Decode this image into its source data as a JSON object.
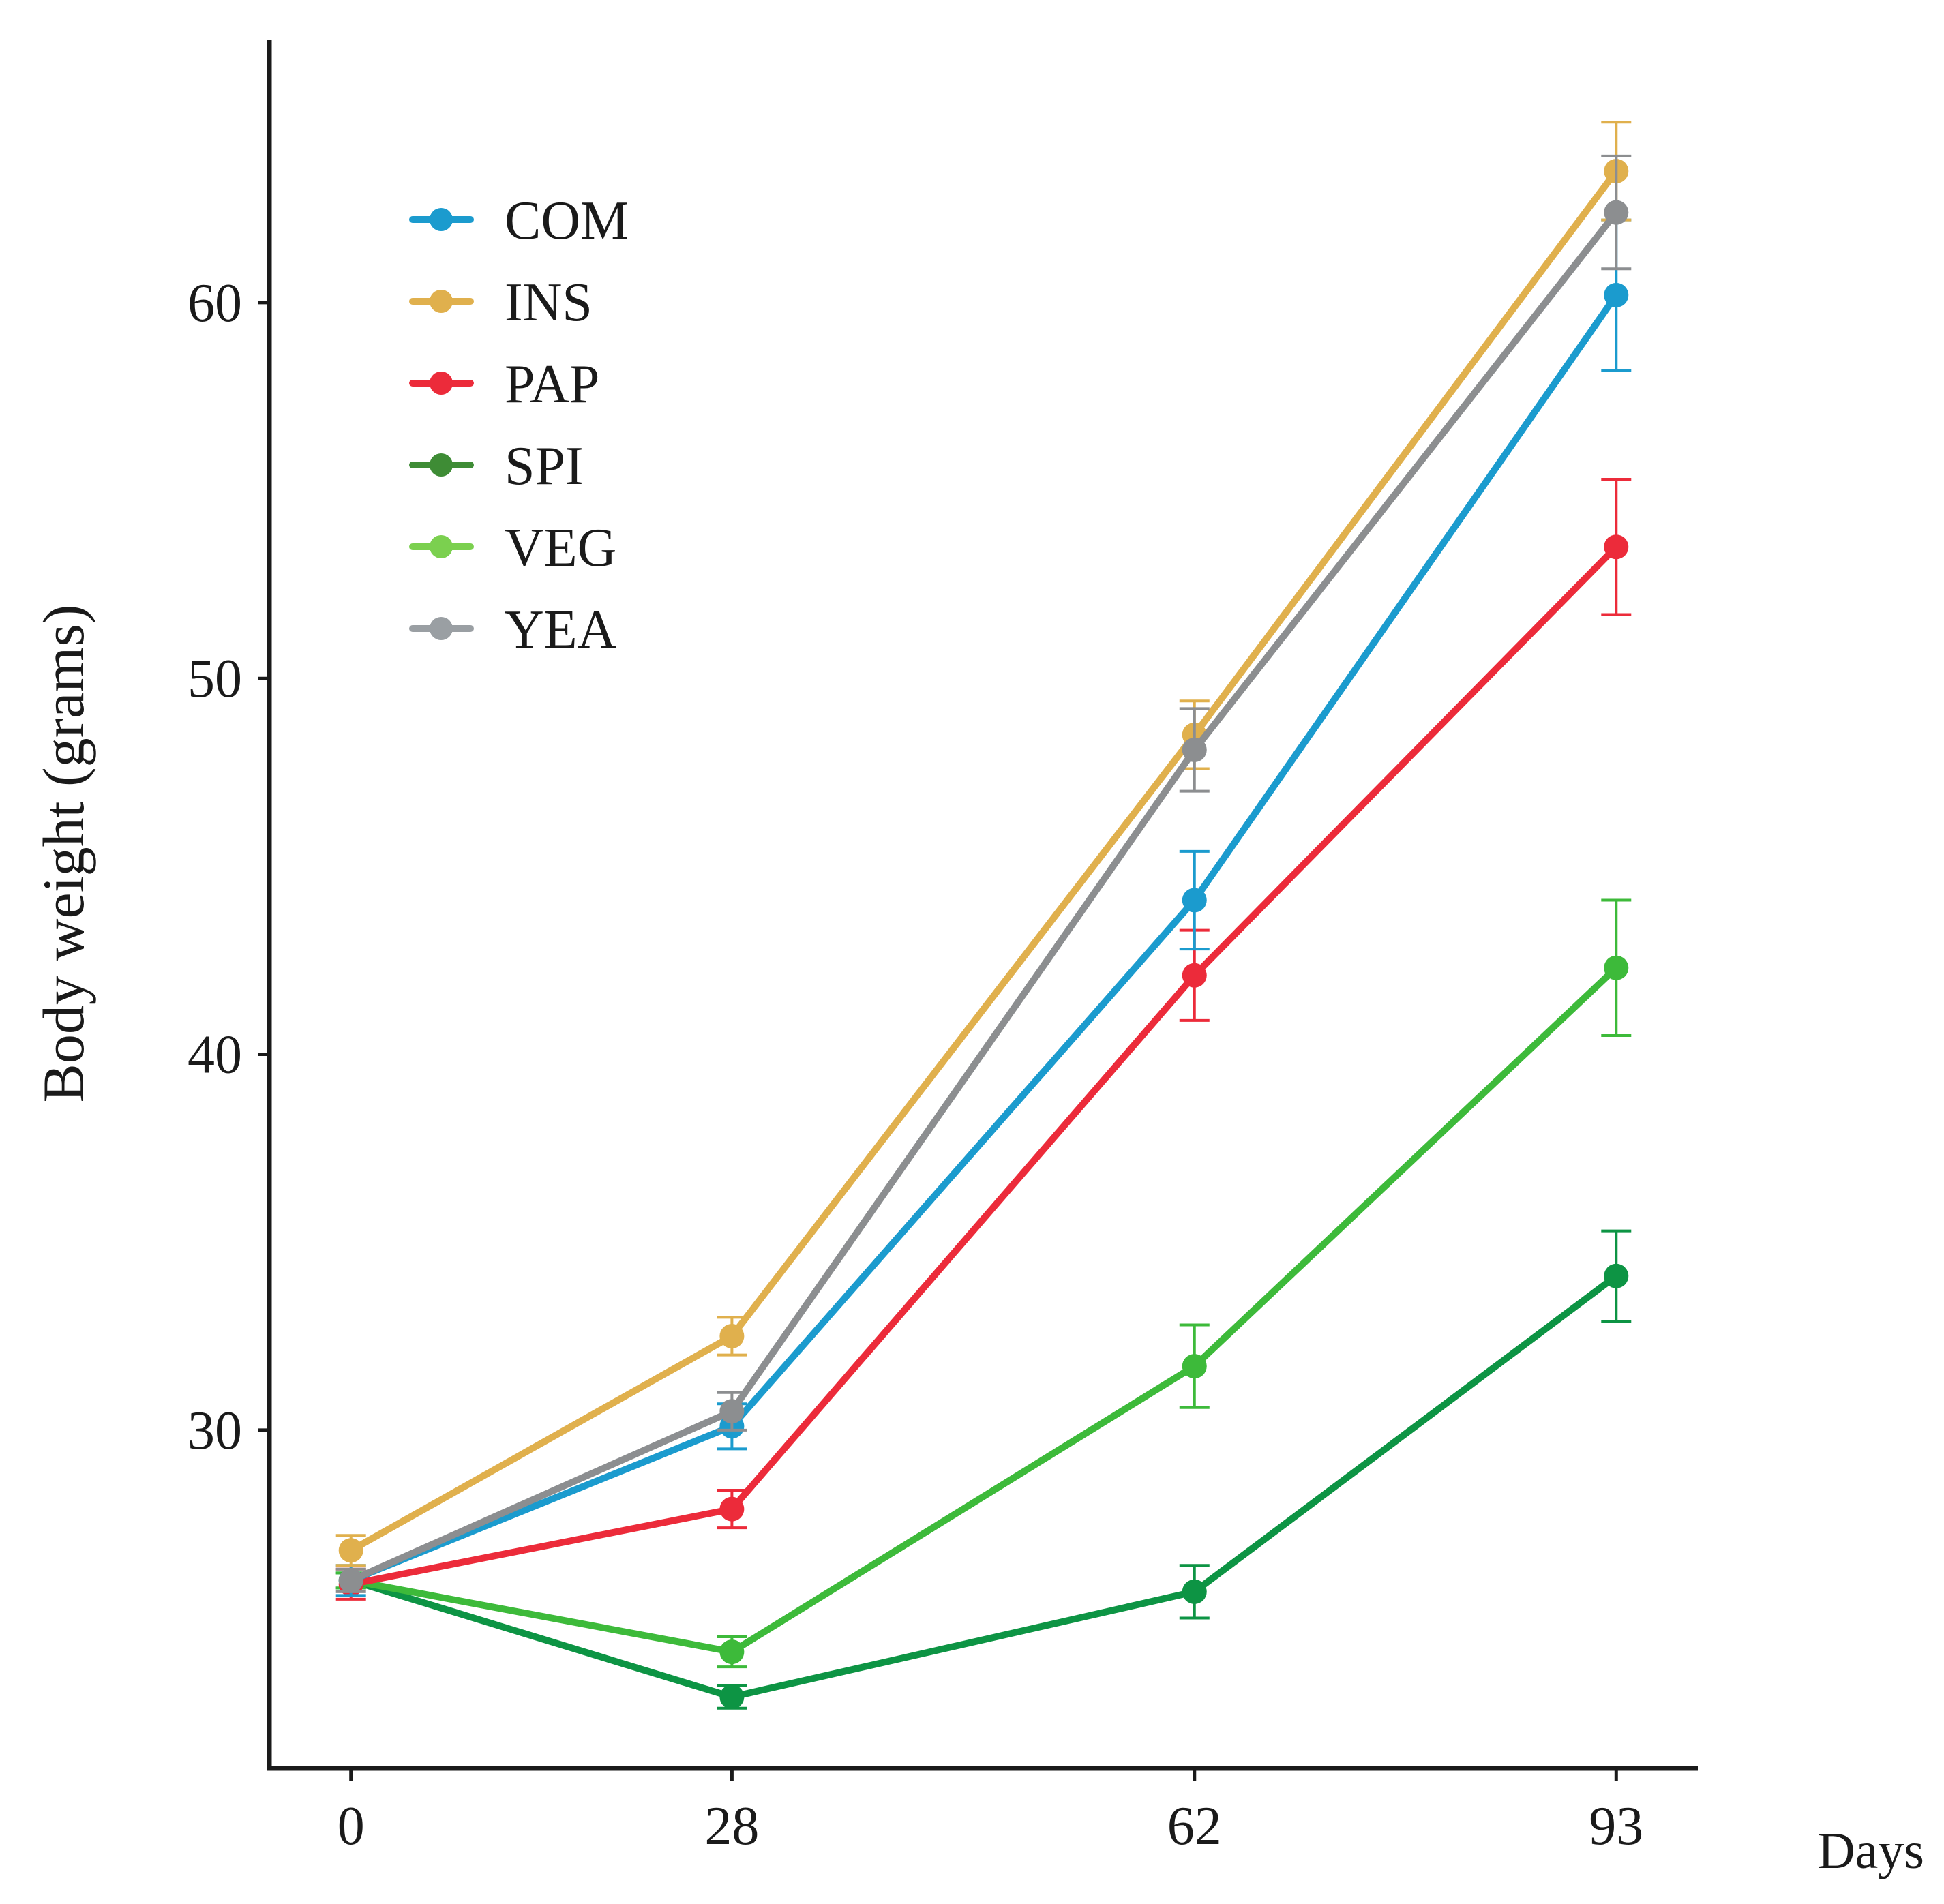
{
  "chart_data": {
    "type": "line",
    "title": "",
    "xlabel": "Days",
    "ylabel": "Body weight (grams)",
    "x": [
      0,
      28,
      62,
      93
    ],
    "x_tick_labels": [
      "0",
      "28",
      "62",
      "93"
    ],
    "y_ticks": [
      30,
      40,
      50,
      60
    ],
    "y_tick_labels": [
      "30",
      "40",
      "50",
      "60"
    ],
    "ylim": [
      21.0,
      67.0
    ],
    "xlim": [
      -6.0,
      99.0
    ],
    "grid": false,
    "legend_position": "top-left",
    "series": [
      {
        "name": "COM",
        "color": "#1b9bce",
        "values": [
          26.0,
          30.1,
          44.1,
          60.2
        ],
        "errors": [
          0.4,
          0.6,
          1.3,
          2.0
        ]
      },
      {
        "name": "INS",
        "color": "#e0b04d",
        "values": [
          26.8,
          32.5,
          48.5,
          63.5
        ],
        "errors": [
          0.4,
          0.5,
          0.9,
          1.3
        ]
      },
      {
        "name": "PAP",
        "color": "#ec2b3a",
        "values": [
          25.9,
          27.9,
          42.1,
          53.5
        ],
        "errors": [
          0.4,
          0.5,
          1.2,
          1.8
        ]
      },
      {
        "name": "SPI",
        "color": "#0d9444",
        "values": [
          26.0,
          22.9,
          25.7,
          34.1
        ],
        "errors": [
          0.2,
          0.3,
          0.7,
          1.2
        ]
      },
      {
        "name": "VEG",
        "color": "#3dba3a",
        "values": [
          26.0,
          24.1,
          31.7,
          42.3
        ],
        "errors": [
          0.2,
          0.4,
          1.1,
          1.8
        ]
      },
      {
        "name": "YEA",
        "color": "#8c8e90",
        "values": [
          26.0,
          30.5,
          48.1,
          62.4
        ],
        "errors": [
          0.3,
          0.5,
          1.1,
          1.5
        ]
      }
    ],
    "legend": [
      {
        "label": "COM",
        "color": "#1b9bce"
      },
      {
        "label": "INS",
        "color": "#e0b04d"
      },
      {
        "label": "PAP",
        "color": "#ec2b3a"
      },
      {
        "label": "SPI",
        "color": "#3e8c35"
      },
      {
        "label": "VEG",
        "color": "#7bd04f"
      },
      {
        "label": "YEA",
        "color": "#9a9fa3"
      }
    ]
  }
}
